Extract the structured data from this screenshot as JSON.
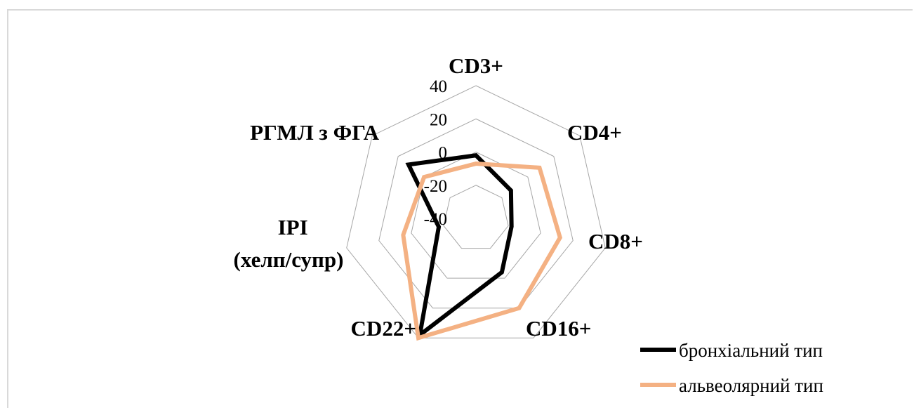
{
  "chart_data": {
    "type": "radar",
    "categories": [
      "CD3+",
      "CD4+",
      "CD8+",
      "CD16+",
      "CD22+",
      "IPI\n(хелп/супр)",
      "РГМЛ з ФГА"
    ],
    "rlim": [
      -40,
      40
    ],
    "ticks": [
      "40",
      "20",
      "0",
      "-20",
      "-40"
    ],
    "tick_values": [
      40,
      20,
      0,
      -20,
      -40
    ],
    "grid": true,
    "legend_position": "bottom-right",
    "series": [
      {
        "name": "бронхіальний тип",
        "color": "#000000",
        "values": [
          -2,
          -13,
          -18,
          -4,
          38,
          -17,
          12
        ]
      },
      {
        "name": "альвеолярний тип",
        "color": "#f4b183",
        "values": [
          -7,
          9,
          12,
          20,
          40,
          5,
          0
        ]
      }
    ]
  }
}
